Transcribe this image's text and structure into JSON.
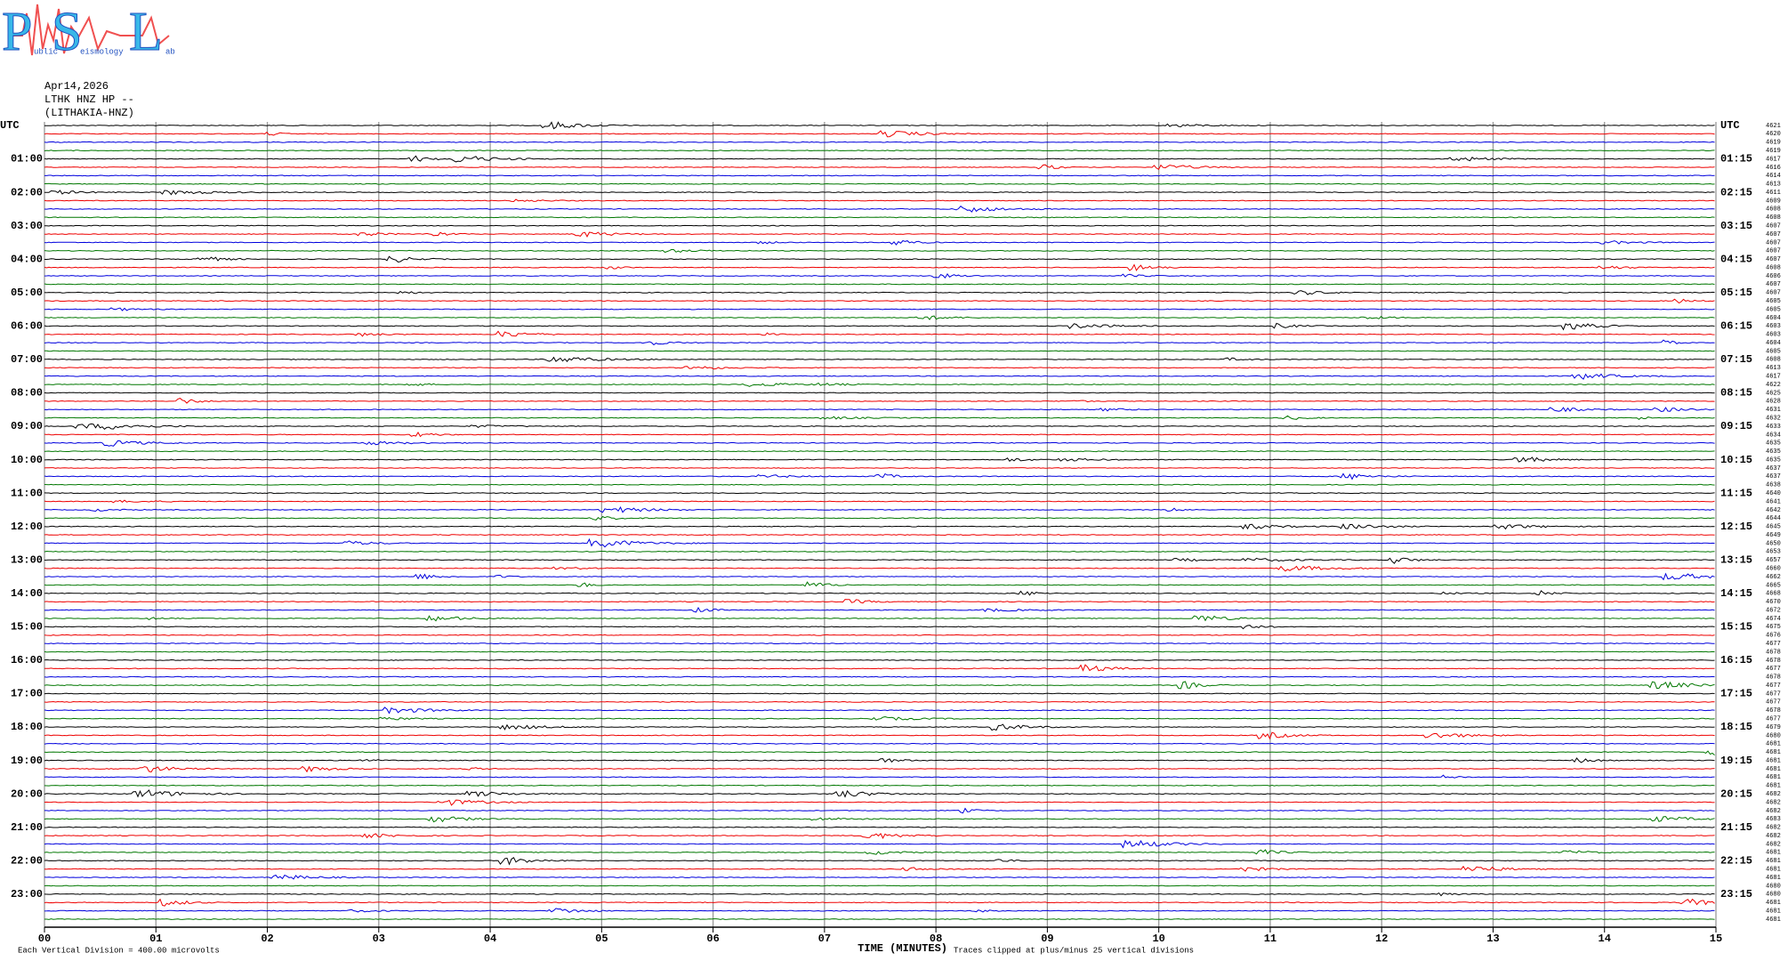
{
  "logo": {
    "letters": [
      "P",
      "S",
      "L"
    ],
    "words": [
      "ublic",
      "eismology",
      "ab"
    ]
  },
  "header": {
    "date": "Apr14,2026",
    "station": "LTHK HNZ HP --",
    "name": "(LITHAKIA-HNZ)"
  },
  "left_labels": [
    "UTC",
    "01:00",
    "02:00",
    "03:00",
    "04:00",
    "05:00",
    "06:00",
    "07:00",
    "08:00",
    "09:00",
    "10:00",
    "11:00",
    "12:00",
    "13:00",
    "14:00",
    "15:00",
    "16:00",
    "17:00",
    "18:00",
    "19:00",
    "20:00",
    "21:00",
    "22:00",
    "23:00"
  ],
  "right_labels": [
    "UTC",
    "01:15",
    "02:15",
    "03:15",
    "04:15",
    "05:15",
    "06:15",
    "07:15",
    "08:15",
    "09:15",
    "10:15",
    "11:15",
    "12:15",
    "13:15",
    "14:15",
    "15:15",
    "16:15",
    "17:15",
    "18:15",
    "19:15",
    "20:15",
    "21:15",
    "22:15",
    "23:15"
  ],
  "trace_counts": [
    "4621",
    "4620",
    "4619",
    "4619",
    "4617",
    "4616",
    "4614",
    "4613",
    "4611",
    "4609",
    "4608",
    "4608",
    "4607",
    "4607",
    "4607",
    "4607",
    "4607",
    "4608",
    "4606",
    "4607",
    "4607",
    "4605",
    "4605",
    "4604",
    "4603",
    "4603",
    "4604",
    "4605",
    "4608",
    "4613",
    "4617",
    "4622",
    "4625",
    "4628",
    "4631",
    "4632",
    "4633",
    "4634",
    "4635",
    "4635",
    "4635",
    "4637",
    "4637",
    "4638",
    "4640",
    "4641",
    "4642",
    "4644",
    "4645",
    "4649",
    "4650",
    "4653",
    "4657",
    "4660",
    "4662",
    "4665",
    "4668",
    "4670",
    "4672",
    "4674",
    "4675",
    "4676",
    "4677",
    "4678",
    "4678",
    "4677",
    "4678",
    "4677",
    "4677",
    "4677",
    "4678",
    "4677",
    "4679",
    "4680",
    "4681",
    "4681",
    "4681",
    "4681",
    "4681",
    "4681",
    "4682",
    "4682",
    "4682",
    "4683",
    "4682",
    "4682",
    "4682",
    "4681",
    "4681",
    "4681",
    "4681",
    "4680",
    "4680",
    "4681",
    "4681",
    "4681"
  ],
  "x_axis": {
    "ticks": [
      "00",
      "01",
      "02",
      "03",
      "04",
      "05",
      "06",
      "07",
      "08",
      "09",
      "10",
      "11",
      "12",
      "13",
      "14",
      "15"
    ],
    "title": "TIME (MINUTES)"
  },
  "footer": {
    "scale": "Each Vertical Division =  400.00 microvolts",
    "clip": "Traces clipped at plus/minus 25 vertical divisions"
  }
}
